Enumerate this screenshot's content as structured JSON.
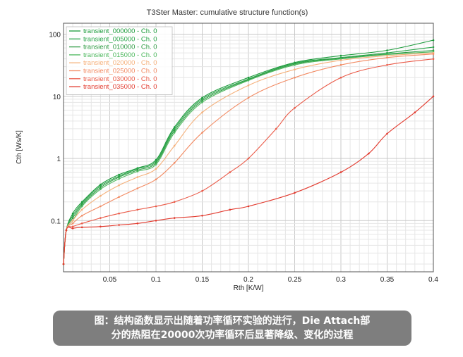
{
  "chart_data": {
    "type": "line",
    "title": "T3Ster Master: cumulative structure function(s)",
    "xlabel": "Rth  [K/W]",
    "ylabel": "Cth  [Ws/K]",
    "xlim": [
      0,
      0.4
    ],
    "ylim": [
      0.015,
      150
    ],
    "yscale": "log",
    "grid": true,
    "legend_position": "top-left",
    "x_ticks": [
      0.05,
      0.1,
      0.15,
      0.2,
      0.25,
      0.3,
      0.35,
      0.4
    ],
    "x_tick_labels": [
      "0.05",
      "0.1",
      "0.15",
      "0.2",
      "0.25",
      "0.3",
      "0.35",
      "0.4"
    ],
    "y_ticks": [
      0.1,
      1,
      10,
      100
    ],
    "y_tick_labels": [
      "0.1",
      "1",
      "10",
      "100"
    ],
    "series": [
      {
        "name": "transient_000000 - Ch. 0",
        "color": "#1a9a3a",
        "x": [
          0,
          0.003,
          0.01,
          0.02,
          0.04,
          0.06,
          0.08,
          0.1,
          0.12,
          0.15,
          0.2,
          0.25,
          0.3,
          0.35,
          0.4
        ],
        "y": [
          0.02,
          0.07,
          0.13,
          0.2,
          0.38,
          0.55,
          0.7,
          0.95,
          3.2,
          9.5,
          20,
          35,
          45,
          55,
          80
        ]
      },
      {
        "name": "transient_005000 - Ch. 0",
        "color": "#2aa54a",
        "x": [
          0,
          0.003,
          0.01,
          0.02,
          0.04,
          0.06,
          0.08,
          0.1,
          0.12,
          0.15,
          0.2,
          0.25,
          0.3,
          0.35,
          0.4
        ],
        "y": [
          0.02,
          0.07,
          0.12,
          0.19,
          0.36,
          0.52,
          0.68,
          0.9,
          3.0,
          9.0,
          19,
          34,
          42,
          50,
          62
        ]
      },
      {
        "name": "transient_010000 - Ch. 0",
        "color": "#2f9c44",
        "x": [
          0,
          0.003,
          0.01,
          0.02,
          0.04,
          0.06,
          0.08,
          0.1,
          0.12,
          0.15,
          0.2,
          0.25,
          0.3,
          0.35,
          0.4
        ],
        "y": [
          0.02,
          0.07,
          0.11,
          0.18,
          0.34,
          0.5,
          0.65,
          0.85,
          2.8,
          8.5,
          18.5,
          33,
          41,
          48,
          55
        ]
      },
      {
        "name": "transient_015000 - Ch. 0",
        "color": "#4db85e",
        "x": [
          0,
          0.003,
          0.01,
          0.02,
          0.04,
          0.06,
          0.08,
          0.1,
          0.12,
          0.15,
          0.2,
          0.25,
          0.3,
          0.35,
          0.4
        ],
        "y": [
          0.02,
          0.07,
          0.1,
          0.17,
          0.32,
          0.47,
          0.62,
          0.8,
          2.6,
          8.0,
          18,
          32,
          40,
          47,
          52
        ]
      },
      {
        "name": "transient_020000 - Ch. 0",
        "color": "#f5b07a",
        "x": [
          0,
          0.003,
          0.01,
          0.02,
          0.04,
          0.06,
          0.08,
          0.1,
          0.12,
          0.15,
          0.2,
          0.25,
          0.3,
          0.35,
          0.4
        ],
        "y": [
          0.02,
          0.07,
          0.1,
          0.15,
          0.25,
          0.37,
          0.5,
          0.68,
          1.6,
          5.5,
          15,
          27,
          38,
          45,
          50
        ]
      },
      {
        "name": "transient_025000 - Ch. 0",
        "color": "#f28a62",
        "x": [
          0,
          0.003,
          0.01,
          0.02,
          0.04,
          0.06,
          0.08,
          0.1,
          0.12,
          0.15,
          0.2,
          0.25,
          0.3,
          0.35,
          0.4
        ],
        "y": [
          0.02,
          0.07,
          0.09,
          0.12,
          0.17,
          0.24,
          0.33,
          0.46,
          0.85,
          2.6,
          9.5,
          20,
          32,
          42,
          48
        ]
      },
      {
        "name": "transient_030000 - Ch. 0",
        "color": "#ea5a48",
        "x": [
          0,
          0.003,
          0.01,
          0.02,
          0.04,
          0.06,
          0.08,
          0.1,
          0.12,
          0.15,
          0.18,
          0.2,
          0.23,
          0.25,
          0.3,
          0.35,
          0.4
        ],
        "y": [
          0.02,
          0.07,
          0.08,
          0.09,
          0.11,
          0.13,
          0.15,
          0.17,
          0.2,
          0.3,
          0.6,
          1.0,
          3.0,
          6.5,
          20,
          32,
          40
        ]
      },
      {
        "name": "transient_035000 - Ch. 0",
        "color": "#e23a2e",
        "x": [
          0,
          0.003,
          0.01,
          0.02,
          0.04,
          0.06,
          0.08,
          0.1,
          0.12,
          0.15,
          0.18,
          0.2,
          0.25,
          0.3,
          0.33,
          0.35,
          0.38,
          0.4
        ],
        "y": [
          0.02,
          0.07,
          0.075,
          0.078,
          0.08,
          0.085,
          0.09,
          0.1,
          0.11,
          0.12,
          0.15,
          0.17,
          0.28,
          0.6,
          1.2,
          2.5,
          5.5,
          10
        ]
      }
    ]
  },
  "caption": {
    "line1": "图：结构函数显示出随着功率循环实验的进行，Die Attach部",
    "line2": "分的热阻在20000次功率循环后显著降级、变化的过程"
  }
}
